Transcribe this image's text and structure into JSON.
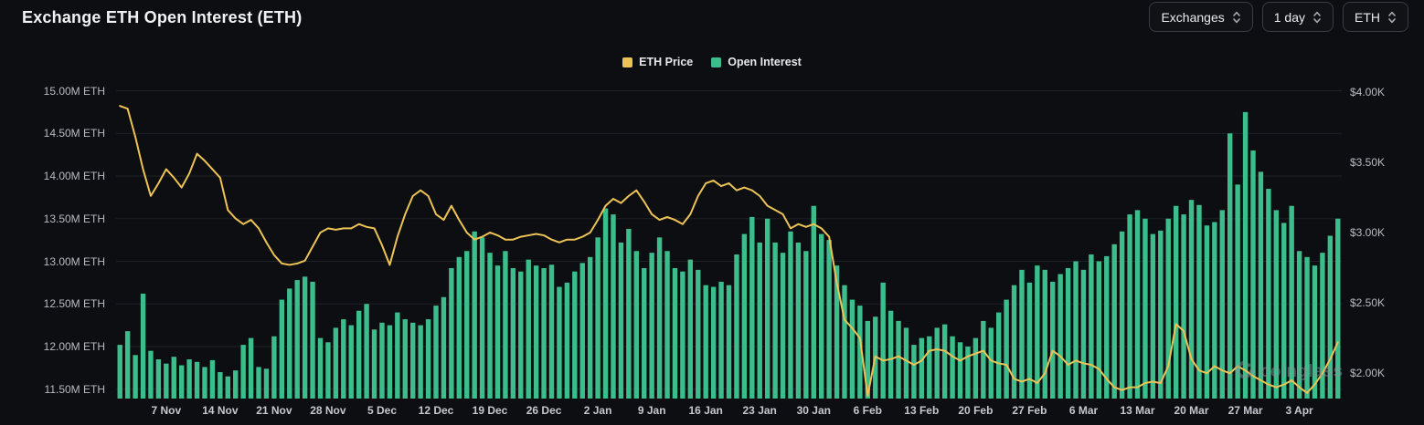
{
  "header": {
    "title": "Exchange ETH Open Interest (ETH)",
    "controls": [
      {
        "label": "Exchanges"
      },
      {
        "label": "1 day"
      },
      {
        "label": "ETH"
      }
    ]
  },
  "legend": [
    {
      "label": "ETH Price",
      "color": "#edc355"
    },
    {
      "label": "Open Interest",
      "color": "#3cbd8c"
    }
  ],
  "watermark": {
    "text": "coinglass"
  },
  "colors": {
    "background": "#0d0e12",
    "grid": "#1e2126",
    "bar_green": "#3cbd8c",
    "line_yellow": "#edc355"
  },
  "chart_data": {
    "type": "bar",
    "note_types": "mixed bar + line, dual y-axes",
    "title": "Exchange ETH Open Interest (ETH)",
    "grid": "horizontal-only",
    "legend_position": "top-center",
    "x_tick_labels": [
      {
        "label": "7 Nov",
        "i": 6
      },
      {
        "label": "14 Nov",
        "i": 13
      },
      {
        "label": "21 Nov",
        "i": 20
      },
      {
        "label": "28 Nov",
        "i": 27
      },
      {
        "label": "5 Dec",
        "i": 34
      },
      {
        "label": "12 Dec",
        "i": 41
      },
      {
        "label": "19 Dec",
        "i": 48
      },
      {
        "label": "26 Dec",
        "i": 55
      },
      {
        "label": "2 Jan",
        "i": 62
      },
      {
        "label": "9 Jan",
        "i": 69
      },
      {
        "label": "16 Jan",
        "i": 76
      },
      {
        "label": "23 Jan",
        "i": 83
      },
      {
        "label": "30 Jan",
        "i": 90
      },
      {
        "label": "6 Feb",
        "i": 97
      },
      {
        "label": "13 Feb",
        "i": 104
      },
      {
        "label": "20 Feb",
        "i": 111
      },
      {
        "label": "27 Feb",
        "i": 118
      },
      {
        "label": "6 Mar",
        "i": 125
      },
      {
        "label": "13 Mar",
        "i": 132
      },
      {
        "label": "20 Mar",
        "i": 139
      },
      {
        "label": "27 Mar",
        "i": 146
      },
      {
        "label": "3 Apr",
        "i": 153
      }
    ],
    "left_axis": {
      "unit": "M ETH",
      "min": 11.39,
      "max": 15.07,
      "ticks": [
        {
          "label": "15.00M ETH",
          "value": 15.0
        },
        {
          "label": "14.50M ETH",
          "value": 14.5
        },
        {
          "label": "14.00M ETH",
          "value": 14.0
        },
        {
          "label": "13.50M ETH",
          "value": 13.5
        },
        {
          "label": "13.00M ETH",
          "value": 13.0
        },
        {
          "label": "12.50M ETH",
          "value": 12.5
        },
        {
          "label": "12.00M ETH",
          "value": 12.0
        },
        {
          "label": "11.50M ETH",
          "value": 11.5
        }
      ]
    },
    "right_axis": {
      "unit": "K USD",
      "min": 1.82,
      "max": 4.05,
      "ticks": [
        {
          "label": "$4.00K",
          "value": 4.0
        },
        {
          "label": "$3.50K",
          "value": 3.5
        },
        {
          "label": "$3.00K",
          "value": 3.0
        },
        {
          "label": "$2.50K",
          "value": 2.5
        },
        {
          "label": "$2.00K",
          "value": 2.0
        }
      ]
    },
    "series": [
      {
        "name": "Open Interest",
        "type": "bar",
        "axis": "left",
        "unit": "M ETH",
        "color": "#3cbd8c",
        "values": [
          12.02,
          12.18,
          11.9,
          12.62,
          11.95,
          11.85,
          11.8,
          11.88,
          11.78,
          11.85,
          11.82,
          11.76,
          11.84,
          11.7,
          11.65,
          11.72,
          12.02,
          12.1,
          11.76,
          11.74,
          12.12,
          12.55,
          12.68,
          12.78,
          12.82,
          12.76,
          12.1,
          12.05,
          12.22,
          12.32,
          12.25,
          12.42,
          12.5,
          12.2,
          12.28,
          12.25,
          12.4,
          12.32,
          12.28,
          12.25,
          12.32,
          12.48,
          12.58,
          12.92,
          13.05,
          13.12,
          13.35,
          13.28,
          13.1,
          12.95,
          13.12,
          12.92,
          12.88,
          13.02,
          12.95,
          12.92,
          12.96,
          12.7,
          12.75,
          12.88,
          12.98,
          13.05,
          13.28,
          13.62,
          13.55,
          13.22,
          13.38,
          13.12,
          12.92,
          13.1,
          13.28,
          13.12,
          12.92,
          12.88,
          13.02,
          12.9,
          12.72,
          12.7,
          12.76,
          12.72,
          13.08,
          13.32,
          13.52,
          13.22,
          13.5,
          13.22,
          13.1,
          13.35,
          13.22,
          13.12,
          13.65,
          13.32,
          13.25,
          12.95,
          12.72,
          12.55,
          12.48,
          12.3,
          12.35,
          12.75,
          12.42,
          12.3,
          12.22,
          12.02,
          12.1,
          12.12,
          12.22,
          12.26,
          12.12,
          12.05,
          12.0,
          12.1,
          12.3,
          12.22,
          12.4,
          12.55,
          12.72,
          12.9,
          12.75,
          12.95,
          12.9,
          12.76,
          12.85,
          12.92,
          13.0,
          12.9,
          13.08,
          13.0,
          13.06,
          13.2,
          13.35,
          13.55,
          13.6,
          13.5,
          13.32,
          13.36,
          13.5,
          13.65,
          13.55,
          13.72,
          13.66,
          13.42,
          13.46,
          13.6,
          14.5,
          13.9,
          14.75,
          14.3,
          14.05,
          13.85,
          13.6,
          13.45,
          13.65,
          13.12,
          13.05,
          12.95,
          13.1,
          13.3,
          13.5
        ]
      },
      {
        "name": "ETH Price",
        "type": "line",
        "axis": "right",
        "unit": "K USD",
        "color": "#edc355",
        "values": [
          3.9,
          3.88,
          3.68,
          3.45,
          3.26,
          3.35,
          3.45,
          3.39,
          3.32,
          3.42,
          3.56,
          3.51,
          3.45,
          3.39,
          3.16,
          3.1,
          3.06,
          3.09,
          3.03,
          2.93,
          2.84,
          2.78,
          2.77,
          2.78,
          2.8,
          2.9,
          3.0,
          3.03,
          3.02,
          3.03,
          3.03,
          3.06,
          3.04,
          3.03,
          2.91,
          2.77,
          2.97,
          3.13,
          3.26,
          3.3,
          3.26,
          3.13,
          3.09,
          3.19,
          3.09,
          3.0,
          2.95,
          2.97,
          3.0,
          2.98,
          2.95,
          2.95,
          2.97,
          2.98,
          2.99,
          2.98,
          2.95,
          2.93,
          2.95,
          2.95,
          2.97,
          3.0,
          3.09,
          3.19,
          3.24,
          3.21,
          3.26,
          3.3,
          3.22,
          3.13,
          3.09,
          3.11,
          3.09,
          3.06,
          3.13,
          3.26,
          3.35,
          3.37,
          3.33,
          3.35,
          3.3,
          3.32,
          3.3,
          3.26,
          3.19,
          3.16,
          3.13,
          3.03,
          3.06,
          3.04,
          3.06,
          3.03,
          2.97,
          2.64,
          2.38,
          2.32,
          2.25,
          1.84,
          2.12,
          2.09,
          2.1,
          2.12,
          2.09,
          2.06,
          2.09,
          2.16,
          2.17,
          2.16,
          2.12,
          2.09,
          2.12,
          2.14,
          2.16,
          2.09,
          2.07,
          2.06,
          1.96,
          1.94,
          1.96,
          1.93,
          2.0,
          2.16,
          2.12,
          2.06,
          2.09,
          2.07,
          2.06,
          2.03,
          1.96,
          1.9,
          1.88,
          1.9,
          1.9,
          1.93,
          1.94,
          1.93,
          2.05,
          2.35,
          2.3,
          2.1,
          2.02,
          2.0,
          2.05,
          2.02,
          2.0,
          2.05,
          2.02,
          1.98,
          1.95,
          1.92,
          1.9,
          1.92,
          1.95,
          1.9,
          1.86,
          1.92,
          2.0,
          2.1,
          2.22
        ]
      }
    ]
  }
}
